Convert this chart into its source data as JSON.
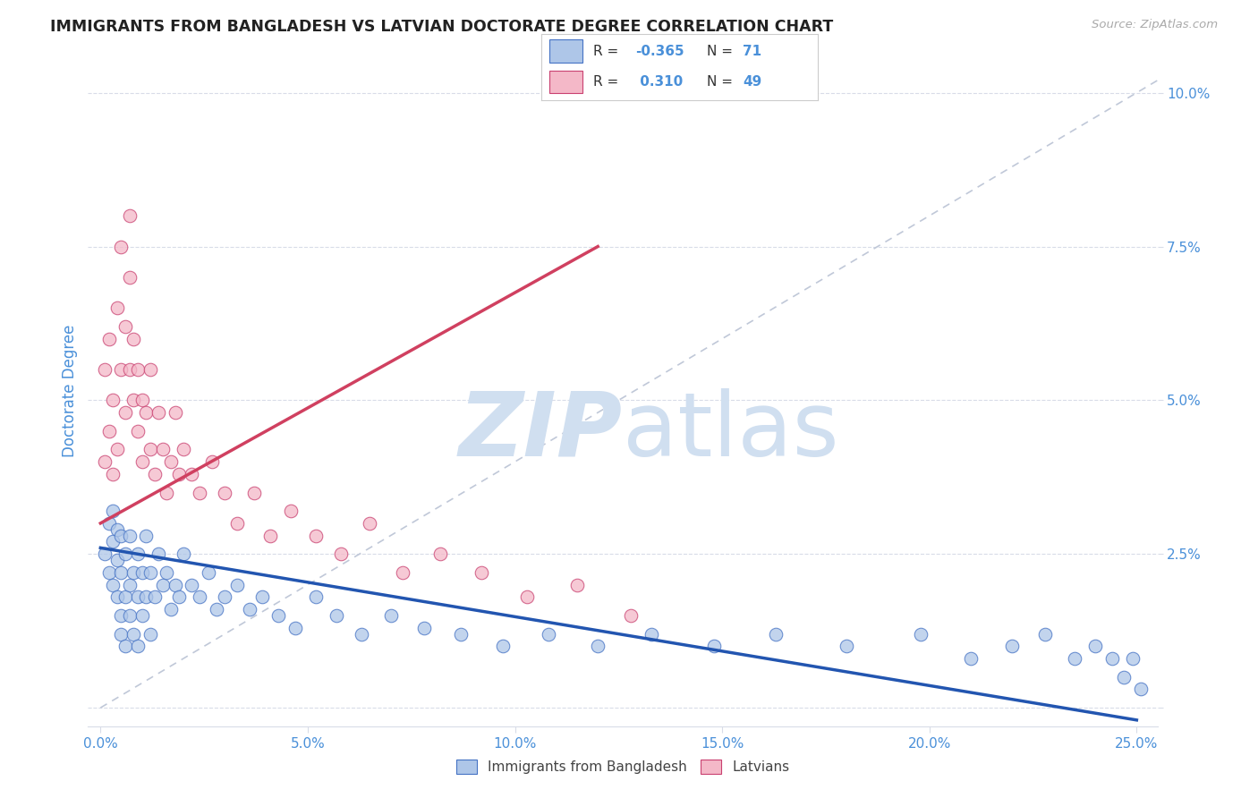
{
  "title": "IMMIGRANTS FROM BANGLADESH VS LATVIAN DOCTORATE DEGREE CORRELATION CHART",
  "source_text": "Source: ZipAtlas.com",
  "ylabel": "Doctorate Degree",
  "xlim": [
    -0.003,
    0.255
  ],
  "ylim": [
    -0.003,
    0.106
  ],
  "xticks": [
    0.0,
    0.05,
    0.1,
    0.15,
    0.2,
    0.25
  ],
  "yticks": [
    0.0,
    0.025,
    0.05,
    0.075,
    0.1
  ],
  "ytick_labels": [
    "",
    "2.5%",
    "5.0%",
    "7.5%",
    "10.0%"
  ],
  "xtick_labels": [
    "0.0%",
    "5.0%",
    "10.0%",
    "15.0%",
    "20.0%",
    "25.0%"
  ],
  "R_blue": -0.365,
  "N_blue": 71,
  "R_pink": 0.31,
  "N_pink": 49,
  "blue_fill": "#aec6e8",
  "blue_edge": "#4472c4",
  "pink_fill": "#f4b8c8",
  "pink_edge": "#c94070",
  "trend_blue": "#2255b0",
  "trend_pink": "#d04060",
  "diag_color": "#c0c8d8",
  "bg_color": "#ffffff",
  "grid_color": "#d8dce8",
  "title_color": "#222222",
  "tick_color": "#4a90d9",
  "legend_R_color": "#4a90d9",
  "legend_N_color": "#333333",
  "watermark_color": "#d0dff0",
  "blue_scatter_x": [
    0.001,
    0.002,
    0.002,
    0.003,
    0.003,
    0.003,
    0.004,
    0.004,
    0.004,
    0.005,
    0.005,
    0.005,
    0.005,
    0.006,
    0.006,
    0.006,
    0.007,
    0.007,
    0.007,
    0.008,
    0.008,
    0.009,
    0.009,
    0.009,
    0.01,
    0.01,
    0.011,
    0.011,
    0.012,
    0.012,
    0.013,
    0.014,
    0.015,
    0.016,
    0.017,
    0.018,
    0.019,
    0.02,
    0.022,
    0.024,
    0.026,
    0.028,
    0.03,
    0.033,
    0.036,
    0.039,
    0.043,
    0.047,
    0.052,
    0.057,
    0.063,
    0.07,
    0.078,
    0.087,
    0.097,
    0.108,
    0.12,
    0.133,
    0.148,
    0.163,
    0.18,
    0.198,
    0.21,
    0.22,
    0.228,
    0.235,
    0.24,
    0.244,
    0.247,
    0.249,
    0.251
  ],
  "blue_scatter_y": [
    0.025,
    0.03,
    0.022,
    0.032,
    0.027,
    0.02,
    0.024,
    0.018,
    0.029,
    0.015,
    0.022,
    0.028,
    0.012,
    0.018,
    0.025,
    0.01,
    0.02,
    0.015,
    0.028,
    0.012,
    0.022,
    0.018,
    0.025,
    0.01,
    0.022,
    0.015,
    0.028,
    0.018,
    0.022,
    0.012,
    0.018,
    0.025,
    0.02,
    0.022,
    0.016,
    0.02,
    0.018,
    0.025,
    0.02,
    0.018,
    0.022,
    0.016,
    0.018,
    0.02,
    0.016,
    0.018,
    0.015,
    0.013,
    0.018,
    0.015,
    0.012,
    0.015,
    0.013,
    0.012,
    0.01,
    0.012,
    0.01,
    0.012,
    0.01,
    0.012,
    0.01,
    0.012,
    0.008,
    0.01,
    0.012,
    0.008,
    0.01,
    0.008,
    0.005,
    0.008,
    0.003
  ],
  "pink_scatter_x": [
    0.001,
    0.001,
    0.002,
    0.002,
    0.003,
    0.003,
    0.004,
    0.004,
    0.005,
    0.005,
    0.006,
    0.006,
    0.007,
    0.007,
    0.007,
    0.008,
    0.008,
    0.009,
    0.009,
    0.01,
    0.01,
    0.011,
    0.012,
    0.012,
    0.013,
    0.014,
    0.015,
    0.016,
    0.017,
    0.018,
    0.019,
    0.02,
    0.022,
    0.024,
    0.027,
    0.03,
    0.033,
    0.037,
    0.041,
    0.046,
    0.052,
    0.058,
    0.065,
    0.073,
    0.082,
    0.092,
    0.103,
    0.115,
    0.128
  ],
  "pink_scatter_y": [
    0.04,
    0.055,
    0.045,
    0.06,
    0.038,
    0.05,
    0.065,
    0.042,
    0.055,
    0.075,
    0.048,
    0.062,
    0.07,
    0.055,
    0.08,
    0.05,
    0.06,
    0.045,
    0.055,
    0.05,
    0.04,
    0.048,
    0.055,
    0.042,
    0.038,
    0.048,
    0.042,
    0.035,
    0.04,
    0.048,
    0.038,
    0.042,
    0.038,
    0.035,
    0.04,
    0.035,
    0.03,
    0.035,
    0.028,
    0.032,
    0.028,
    0.025,
    0.03,
    0.022,
    0.025,
    0.022,
    0.018,
    0.02,
    0.015
  ]
}
